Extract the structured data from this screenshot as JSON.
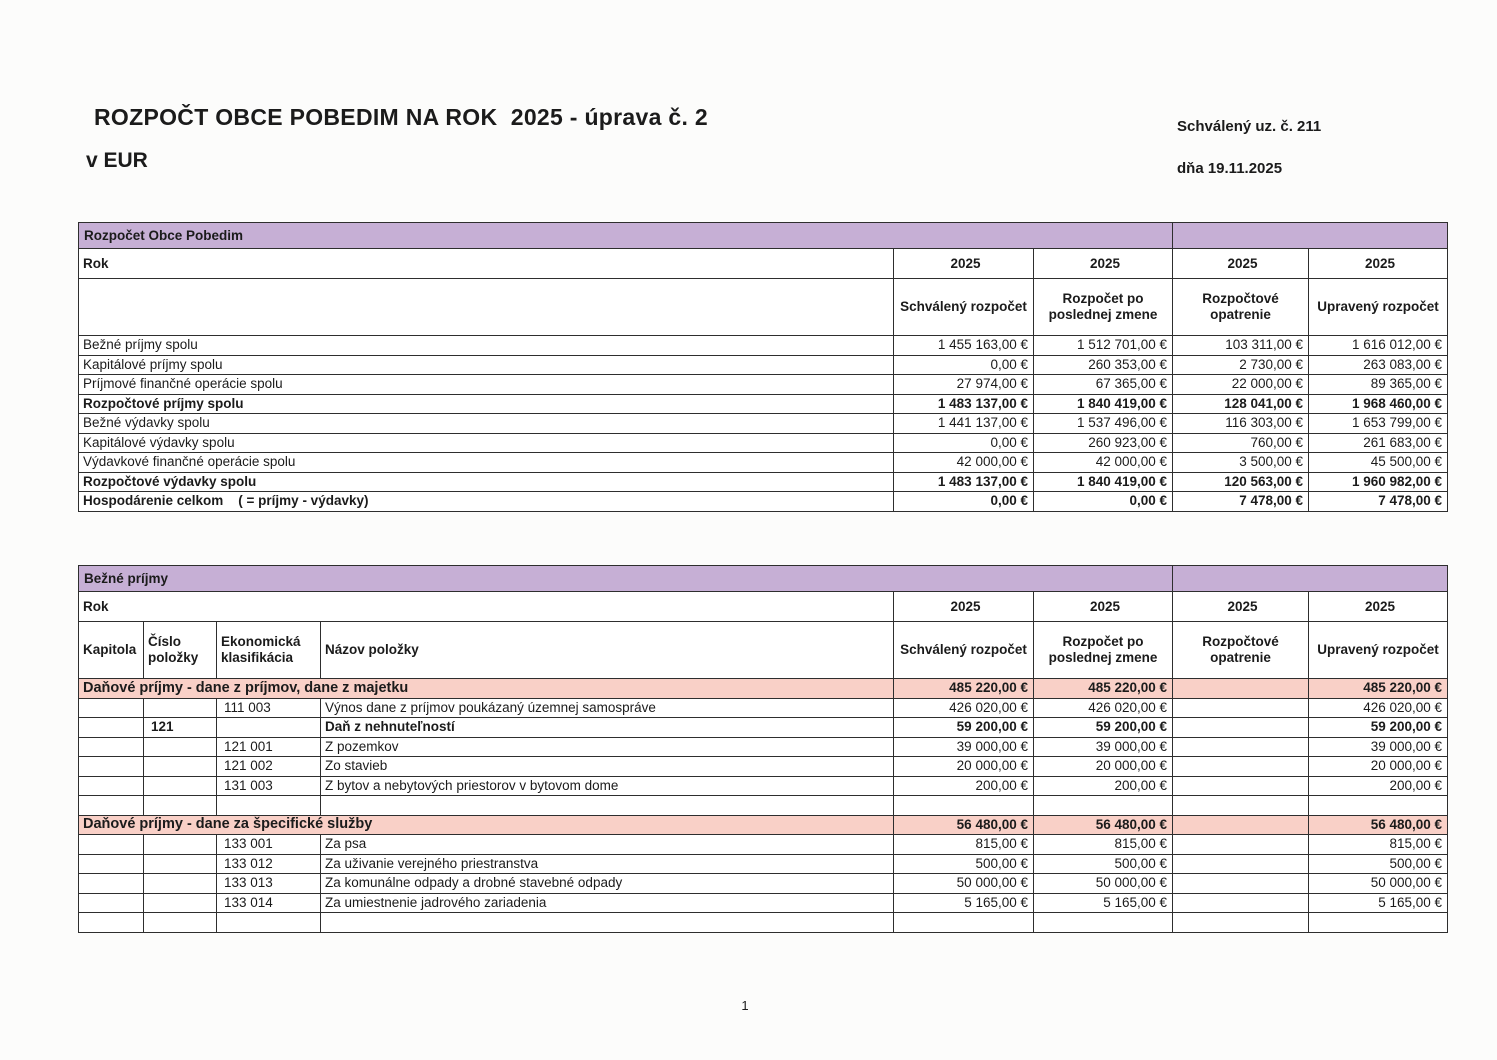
{
  "page": {
    "title": "ROZPOČT OBCE POBEDIM NA ROK  2025 - úprava č. 2",
    "subtitle": "v EUR",
    "approval_line1": "Schválený uz. č. 211",
    "approval_line2": "dňa 19.11.2025",
    "page_number": "1"
  },
  "colors": {
    "band_purple": "#c6afd5",
    "section_pink": "#f9d0c7",
    "border": "#2e2e2e"
  },
  "summary_table": {
    "band_title": "Rozpočet Obce Pobedim",
    "rok_label": "Rok",
    "years": [
      "2025",
      "2025",
      "2025",
      "2025"
    ],
    "col_headers": [
      "Schválený rozpočet",
      "Rozpočet po poslednej zmene",
      "Rozpočtové opatrenie",
      "Upravený rozpočet"
    ],
    "rows": [
      {
        "label": "Bežné príjmy spolu",
        "bold": false,
        "values": [
          "1 455 163,00 €",
          "1 512 701,00 €",
          "103 311,00 €",
          "1 616 012,00 €"
        ]
      },
      {
        "label": "Kapitálové príjmy spolu",
        "bold": false,
        "values": [
          "0,00 €",
          "260 353,00 €",
          "2 730,00 €",
          "263 083,00 €"
        ]
      },
      {
        "label": "Príjmové finančné operácie spolu",
        "bold": false,
        "values": [
          "27 974,00 €",
          "67 365,00 €",
          "22 000,00 €",
          "89 365,00 €"
        ]
      },
      {
        "label": "Rozpočtové príjmy spolu",
        "bold": true,
        "values": [
          "1 483 137,00 €",
          "1 840 419,00 €",
          "128 041,00 €",
          "1 968 460,00 €"
        ]
      },
      {
        "label": "Bežné výdavky spolu",
        "bold": false,
        "values": [
          "1 441 137,00 €",
          "1 537 496,00 €",
          "116 303,00 €",
          "1 653 799,00 €"
        ]
      },
      {
        "label": "Kapitálové výdavky spolu",
        "bold": false,
        "values": [
          "0,00 €",
          "260 923,00 €",
          "760,00 €",
          "261 683,00 €"
        ]
      },
      {
        "label": "Výdavkové finančné operácie spolu",
        "bold": false,
        "values": [
          "42 000,00 €",
          "42 000,00 €",
          "3 500,00 €",
          "45 500,00 €"
        ]
      },
      {
        "label": "Rozpočtové výdavky spolu",
        "bold": true,
        "values": [
          "1 483 137,00 €",
          "1 840 419,00 €",
          "120 563,00 €",
          "1 960 982,00 €"
        ]
      },
      {
        "label": "Hospodárenie celkom    ( = príjmy - výdavky)",
        "bold": true,
        "values": [
          "0,00 €",
          "0,00 €",
          "7 478,00 €",
          "7 478,00 €"
        ]
      }
    ]
  },
  "detail_table": {
    "band_title": "Bežné príjmy",
    "rok_label": "Rok",
    "years": [
      "2025",
      "2025",
      "2025",
      "2025"
    ],
    "left_headers": [
      "Kapitola",
      "Číslo položky",
      "Ekonomická klasifikácia",
      "Názov položky"
    ],
    "col_headers": [
      "Schválený rozpočet",
      "Rozpočet po poslednej zmene",
      "Rozpočtové opatrenie",
      "Upravený rozpočet"
    ],
    "rows": [
      {
        "type": "section",
        "name": "Daňové príjmy - dane z príjmov, dane z majetku",
        "values": [
          "485 220,00 €",
          "485 220,00 €",
          "",
          "485 220,00 €"
        ]
      },
      {
        "type": "item",
        "kapitola": "",
        "cislo": "",
        "ek": "111 003",
        "name": "Výnos dane z príjmov poukázaný územnej samospráve",
        "bold": false,
        "values": [
          "426 020,00 €",
          "426 020,00 €",
          "",
          "426 020,00 €"
        ]
      },
      {
        "type": "item",
        "kapitola": "",
        "cislo": "121",
        "ek": "",
        "name": "Daň z nehnuteľností",
        "bold": true,
        "values": [
          "59 200,00 €",
          "59 200,00 €",
          "",
          "59 200,00 €"
        ]
      },
      {
        "type": "item",
        "kapitola": "",
        "cislo": "",
        "ek": "121 001",
        "name": "Z pozemkov",
        "bold": false,
        "values": [
          "39 000,00 €",
          "39 000,00 €",
          "",
          "39 000,00 €"
        ]
      },
      {
        "type": "item",
        "kapitola": "",
        "cislo": "",
        "ek": "121 002",
        "name": "Zo stavieb",
        "bold": false,
        "values": [
          "20 000,00 €",
          "20 000,00 €",
          "",
          "20 000,00 €"
        ]
      },
      {
        "type": "item",
        "kapitola": "",
        "cislo": "",
        "ek": "131 003",
        "name": "Z bytov a nebytových priestorov v bytovom dome",
        "bold": false,
        "values": [
          "200,00 €",
          "200,00 €",
          "",
          "200,00 €"
        ]
      },
      {
        "type": "empty"
      },
      {
        "type": "section",
        "name": "Daňové príjmy - dane za špecifické služby",
        "values": [
          "56 480,00 €",
          "56 480,00 €",
          "",
          "56 480,00 €"
        ]
      },
      {
        "type": "item",
        "kapitola": "",
        "cislo": "",
        "ek": "133 001",
        "name": "Za psa",
        "bold": false,
        "values": [
          "815,00 €",
          "815,00 €",
          "",
          "815,00 €"
        ]
      },
      {
        "type": "item",
        "kapitola": "",
        "cislo": "",
        "ek": "133 012",
        "name": "Za uživanie verejného priestranstva",
        "bold": false,
        "values": [
          "500,00 €",
          "500,00 €",
          "",
          "500,00 €"
        ]
      },
      {
        "type": "item",
        "kapitola": "",
        "cislo": "",
        "ek": "133 013",
        "name": "Za komunálne odpady a drobné stavebné odpady",
        "bold": false,
        "values": [
          "50 000,00 €",
          "50 000,00 €",
          "",
          "50 000,00 €"
        ]
      },
      {
        "type": "item",
        "kapitola": "",
        "cislo": "",
        "ek": "133 014",
        "name": "Za umiestnenie jadrového zariadenia",
        "bold": false,
        "values": [
          "5 165,00 €",
          "5 165,00 €",
          "",
          "5 165,00 €"
        ]
      },
      {
        "type": "empty"
      }
    ]
  }
}
